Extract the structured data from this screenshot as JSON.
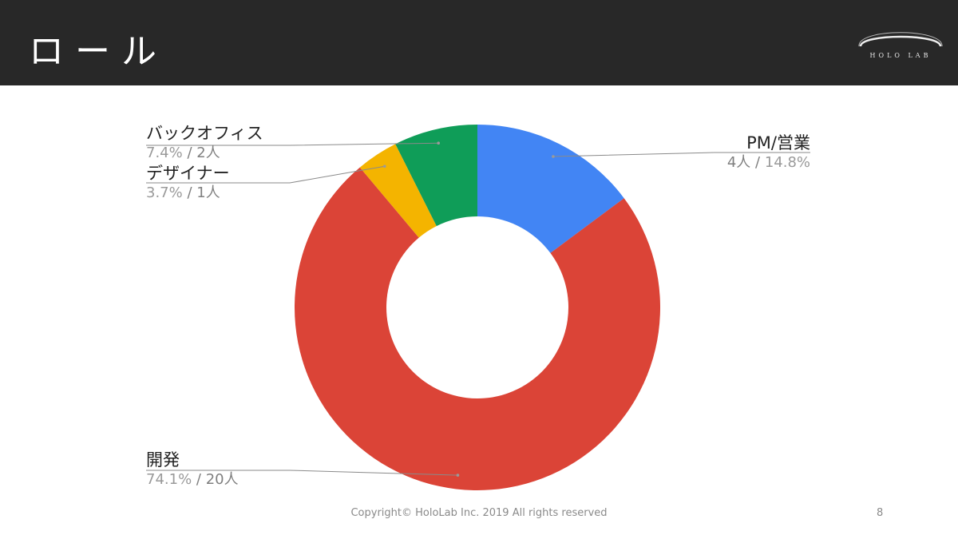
{
  "slide": {
    "title": "ロール",
    "logo_text": "HOLO LAB",
    "footer": "Copyright© HoloLab Inc. 2019 All rights reserved",
    "page_number": "8"
  },
  "chart_data": {
    "type": "pie",
    "donut": true,
    "slices": [
      {
        "name": "PM/営業",
        "count_label": "4人",
        "percent_label": "14.8%",
        "value": 4,
        "percent": 14.8,
        "color": "#4285f4"
      },
      {
        "name": "開発",
        "count_label": "20人",
        "percent_label": "74.1%",
        "value": 20,
        "percent": 74.1,
        "color": "#db4437"
      },
      {
        "name": "デザイナー",
        "count_label": "1人",
        "percent_label": "3.7%",
        "value": 1,
        "percent": 3.7,
        "color": "#f4b400"
      },
      {
        "name": "バックオフィス",
        "count_label": "2人",
        "percent_label": "7.4%",
        "value": 2,
        "percent": 7.4,
        "color": "#0f9d58"
      }
    ]
  }
}
